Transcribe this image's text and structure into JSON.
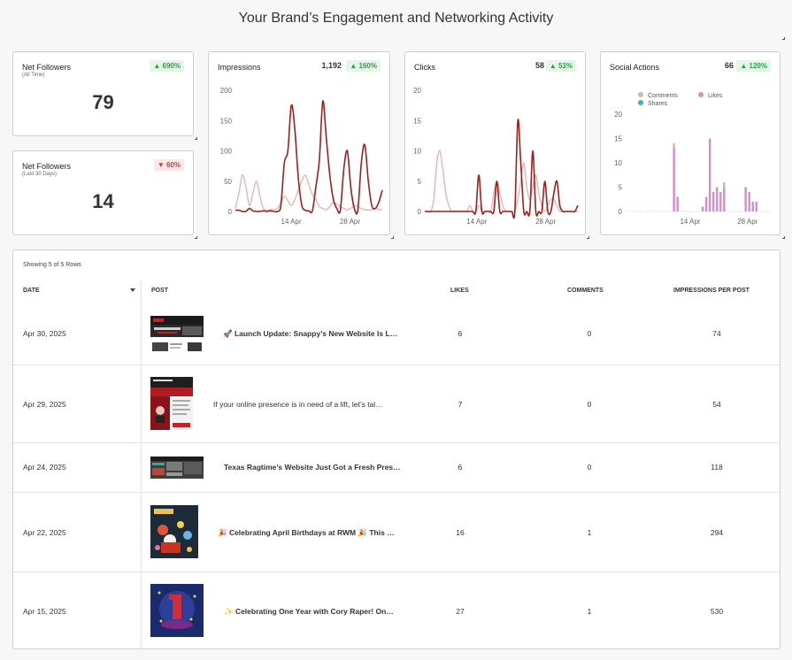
{
  "page": {
    "title": "Your Brand’s Engagement and Networking Activity"
  },
  "cards": {
    "net_followers_all": {
      "title": "Net Followers",
      "subtitle": "(All Time)",
      "value": "79",
      "badge": "▲ 690%"
    },
    "net_followers_30": {
      "title": "Net Followers",
      "subtitle": "(Last 30 Days)",
      "value": "14",
      "badge": "▼ 60%"
    },
    "impressions": {
      "title": "Impressions",
      "value": "1,192",
      "badge": "▲ 160%"
    },
    "clicks": {
      "title": "Clicks",
      "value": "58",
      "badge": "▲ 53%"
    },
    "social_actions": {
      "title": "Social Actions",
      "value": "66",
      "badge": "▲ 120%",
      "legend": [
        "Comments",
        "Likes",
        "Shares"
      ]
    }
  },
  "colors": {
    "current": "#a31d1d",
    "previous": "#e8b4b4",
    "comments": "#c5c0a4",
    "likes": "#d98cc9",
    "shares": "#39b5b0",
    "badge_up": "#2e9e47",
    "badge_down": "#d9383a"
  },
  "chart_data": [
    {
      "type": "line",
      "title": "Impressions",
      "x_ticks": [
        "14 Apr",
        "28 Apr"
      ],
      "ylim": [
        0,
        200
      ],
      "y_ticks": [
        "0",
        "50",
        "100",
        "150",
        "200"
      ],
      "series": [
        {
          "values": [
            2,
            2,
            0,
            0,
            5,
            1,
            0,
            0,
            1,
            0,
            1,
            0,
            0,
            10,
            80,
            100,
            175,
            135,
            55,
            10,
            2,
            1,
            1,
            40,
            85,
            182,
            120,
            60,
            20,
            5,
            2,
            70,
            100,
            40,
            5,
            2,
            80,
            110,
            50,
            10,
            5,
            15,
            35
          ]
        },
        {
          "values": [
            5,
            30,
            60,
            40,
            10,
            30,
            50,
            25,
            5,
            2,
            3,
            3,
            5,
            15,
            25,
            18,
            10,
            20,
            35,
            50,
            60,
            45,
            28,
            20,
            8,
            5,
            3,
            8,
            15,
            12,
            8,
            5,
            3,
            5,
            10,
            8,
            5,
            3,
            2,
            3,
            5,
            3,
            3
          ]
        }
      ]
    },
    {
      "type": "line",
      "title": "Clicks",
      "x_ticks": [
        "14 Apr",
        "28 Apr"
      ],
      "ylim": [
        0,
        20
      ],
      "y_ticks": [
        "0",
        "5",
        "10",
        "15",
        "20"
      ],
      "series": [
        {
          "values": [
            0,
            0,
            0,
            0,
            0,
            0,
            0,
            0,
            0,
            0,
            0,
            0,
            0,
            0,
            0,
            0,
            0,
            0,
            6,
            0,
            0,
            0,
            0,
            0,
            5,
            0,
            0,
            0,
            0,
            0,
            0,
            15,
            8,
            0,
            0,
            0,
            10,
            0,
            0,
            0,
            5,
            0,
            0,
            3,
            5,
            1,
            0,
            0,
            0,
            0,
            0,
            1
          ]
        },
        {
          "values": [
            0,
            0,
            0,
            2,
            8,
            10,
            7,
            3,
            1,
            0,
            0,
            0,
            0,
            0,
            0,
            1,
            0,
            0,
            1,
            0,
            0,
            0,
            0,
            3,
            5,
            3,
            1,
            0,
            0,
            0,
            0,
            2,
            5,
            8,
            4,
            2,
            4,
            6,
            3,
            1,
            0,
            1,
            2,
            2,
            1,
            0,
            0,
            0,
            0,
            0,
            0,
            0
          ]
        }
      ]
    },
    {
      "type": "bar",
      "title": "Social Actions",
      "x_ticks": [
        "14 Apr",
        "28 Apr"
      ],
      "ylim": [
        0,
        20
      ],
      "y_ticks": [
        "0",
        "5",
        "10",
        "15",
        "20"
      ],
      "series": [
        {
          "name": "Likes",
          "values": [
            0,
            0,
            0,
            0,
            0,
            0,
            0,
            0,
            0,
            0,
            0,
            0,
            0,
            13,
            3,
            0,
            0,
            0,
            0,
            0,
            0,
            1,
            3,
            15,
            4,
            5,
            4,
            5,
            0,
            0,
            0,
            0,
            0,
            5,
            4,
            2,
            2,
            0,
            0,
            0,
            0
          ]
        },
        {
          "name": "Comments",
          "values": [
            0,
            0,
            0,
            0,
            0,
            0,
            0,
            0,
            0,
            0,
            0,
            0,
            0,
            1,
            0,
            0,
            0,
            0,
            0,
            0,
            0,
            0,
            0,
            0,
            0,
            0,
            0,
            1,
            0,
            0,
            0,
            0,
            0,
            0,
            0,
            0,
            0,
            0,
            0,
            0,
            0
          ]
        },
        {
          "name": "Shares",
          "values": [
            0,
            0,
            0,
            0,
            0,
            0,
            0,
            0,
            0,
            0,
            0,
            0,
            0,
            0,
            0,
            0,
            0,
            0,
            0,
            0,
            0,
            0,
            0,
            0,
            0,
            0,
            0,
            0,
            0,
            0,
            0,
            0,
            0,
            0,
            0,
            0,
            0,
            0,
            0,
            0,
            0
          ]
        }
      ]
    }
  ],
  "table": {
    "showing": "Showing 5 of 5 Rows",
    "headers": {
      "date": "DATE",
      "post": "POST",
      "likes": "LIKES",
      "comments": "COMMENTS",
      "impressions": "IMPRESSIONS PER POST"
    },
    "rows": [
      {
        "date": "Apr 30, 2025",
        "post": "🚀 Launch Update: Snappy’s New Website Is L…",
        "likes": "6",
        "comments": "0",
        "impressions": "74"
      },
      {
        "date": "Apr 29, 2025",
        "post": "If your online presence is in need of a lift, let’s tal…",
        "likes": "7",
        "comments": "0",
        "impressions": "54"
      },
      {
        "date": "Apr 24, 2025",
        "post": "Texas Ragtime’s Website Just Got a Fresh Pres…",
        "likes": "6",
        "comments": "0",
        "impressions": "118"
      },
      {
        "date": "Apr 22, 2025",
        "post": "🎉 Celebrating April Birthdays at RWM 🎉 This …",
        "likes": "16",
        "comments": "1",
        "impressions": "294"
      },
      {
        "date": "Apr 15, 2025",
        "post": "✨ Celebrating One Year with Cory Raper! On…",
        "likes": "27",
        "comments": "1",
        "impressions": "530"
      }
    ]
  }
}
